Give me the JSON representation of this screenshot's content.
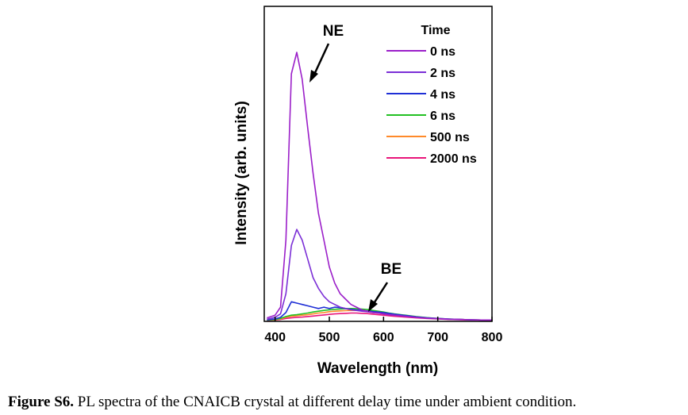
{
  "chart_data": {
    "type": "line",
    "xlabel": "Wavelength (nm)",
    "ylabel": "Intensity (arb. units)",
    "xlim": [
      380,
      800
    ],
    "ylim": [
      0,
      1.0
    ],
    "xticks": [
      400,
      500,
      600,
      700,
      800
    ],
    "legend_title": "Time",
    "legend_position": "top-right",
    "grid": false,
    "x": [
      385,
      400,
      410,
      420,
      430,
      440,
      450,
      460,
      470,
      480,
      490,
      500,
      510,
      520,
      530,
      540,
      550,
      560,
      570,
      580,
      590,
      600,
      610,
      620,
      640,
      660,
      680,
      700,
      720,
      740,
      760,
      780,
      800
    ],
    "series": [
      {
        "name": "0 ns",
        "color": "#9b1fc9",
        "values": [
          0.01,
          0.02,
          0.05,
          0.3,
          0.92,
          1.0,
          0.9,
          0.72,
          0.55,
          0.4,
          0.3,
          0.2,
          0.14,
          0.1,
          0.08,
          0.06,
          0.05,
          0.04,
          0.035,
          0.03,
          0.028,
          0.025,
          0.022,
          0.02,
          0.016,
          0.012,
          0.009,
          0.007,
          0.005,
          0.004,
          0.003,
          0.002,
          0.002
        ]
      },
      {
        "name": "2 ns",
        "color": "#7b2fd6",
        "values": [
          0.005,
          0.012,
          0.025,
          0.1,
          0.28,
          0.34,
          0.3,
          0.23,
          0.16,
          0.12,
          0.09,
          0.07,
          0.06,
          0.05,
          0.045,
          0.04,
          0.038,
          0.035,
          0.033,
          0.03,
          0.028,
          0.025,
          0.022,
          0.02,
          0.016,
          0.012,
          0.009,
          0.007,
          0.005,
          0.004,
          0.003,
          0.002,
          0.002
        ]
      },
      {
        "name": "4 ns",
        "color": "#1f2fd6",
        "values": [
          0.003,
          0.006,
          0.012,
          0.03,
          0.07,
          0.065,
          0.06,
          0.055,
          0.05,
          0.045,
          0.05,
          0.045,
          0.05,
          0.048,
          0.045,
          0.042,
          0.04,
          0.038,
          0.036,
          0.034,
          0.032,
          0.03,
          0.027,
          0.024,
          0.019,
          0.014,
          0.01,
          0.008,
          0.006,
          0.004,
          0.003,
          0.002,
          0.002
        ]
      },
      {
        "name": "6 ns",
        "color": "#22c022",
        "values": [
          0.002,
          0.004,
          0.008,
          0.015,
          0.02,
          0.022,
          0.025,
          0.028,
          0.032,
          0.035,
          0.038,
          0.04,
          0.042,
          0.043,
          0.044,
          0.045,
          0.044,
          0.043,
          0.041,
          0.038,
          0.035,
          0.032,
          0.028,
          0.025,
          0.02,
          0.015,
          0.011,
          0.008,
          0.006,
          0.004,
          0.003,
          0.002,
          0.002
        ]
      },
      {
        "name": "500 ns",
        "color": "#ff8a2a",
        "values": [
          0.002,
          0.003,
          0.006,
          0.012,
          0.016,
          0.018,
          0.02,
          0.022,
          0.025,
          0.028,
          0.03,
          0.033,
          0.035,
          0.036,
          0.037,
          0.038,
          0.038,
          0.037,
          0.035,
          0.033,
          0.03,
          0.027,
          0.024,
          0.021,
          0.017,
          0.013,
          0.01,
          0.007,
          0.005,
          0.004,
          0.003,
          0.002,
          0.002
        ]
      },
      {
        "name": "2000 ns",
        "color": "#e8157a",
        "values": [
          0.001,
          0.002,
          0.004,
          0.008,
          0.01,
          0.012,
          0.013,
          0.015,
          0.017,
          0.019,
          0.021,
          0.023,
          0.025,
          0.026,
          0.027,
          0.028,
          0.028,
          0.027,
          0.026,
          0.024,
          0.022,
          0.02,
          0.018,
          0.016,
          0.013,
          0.01,
          0.008,
          0.006,
          0.004,
          0.003,
          0.002,
          0.002,
          0.001
        ]
      }
    ],
    "annotations": [
      {
        "text": "NE",
        "target_x": 440
      },
      {
        "text": "BE",
        "target_x": 575
      }
    ]
  },
  "caption": {
    "label": "Figure S6.",
    "text": " PL spectra of the CNAICB crystal at different delay time under ambient condition."
  }
}
